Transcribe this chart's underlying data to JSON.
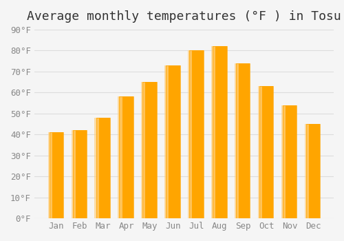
{
  "title": "Average monthly temperatures (°F ) in Tosu",
  "months": [
    "Jan",
    "Feb",
    "Mar",
    "Apr",
    "May",
    "Jun",
    "Jul",
    "Aug",
    "Sep",
    "Oct",
    "Nov",
    "Dec"
  ],
  "values": [
    41,
    42,
    48,
    58,
    65,
    73,
    80,
    82,
    74,
    63,
    54,
    45
  ],
  "bar_color_top": "#FFA500",
  "bar_color_bottom": "#FFD080",
  "background_color": "#f5f5f5",
  "grid_color": "#dddddd",
  "ylim": [
    0,
    90
  ],
  "yticks": [
    0,
    10,
    20,
    30,
    40,
    50,
    60,
    70,
    80,
    90
  ],
  "title_fontsize": 13,
  "tick_fontsize": 9,
  "tick_font": "monospace"
}
